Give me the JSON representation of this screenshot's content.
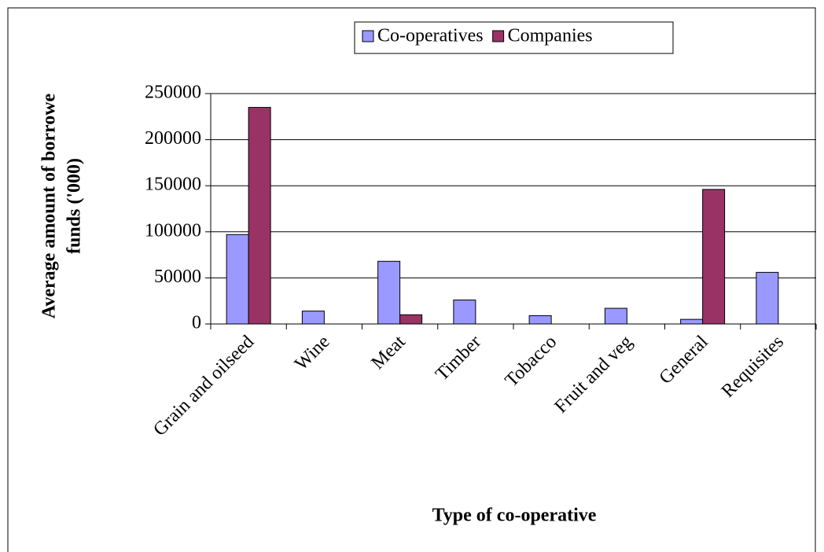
{
  "chart_data": {
    "type": "bar",
    "y_label": "Average amount of borrowe funds ('000)",
    "x_label": "Type of co-operative",
    "categories": [
      "Grain and oilseed",
      "Wine",
      "Meat",
      "Timber",
      "Tobacco",
      "Fruit and veg",
      "General",
      "Requisites"
    ],
    "series": [
      {
        "name": "Co-operatives",
        "color": "#9999ff",
        "values": [
          97000,
          14000,
          68000,
          26000,
          9000,
          17000,
          5000,
          56000
        ]
      },
      {
        "name": "Companies",
        "color": "#993366",
        "values": [
          235000,
          null,
          10000,
          null,
          null,
          null,
          146000,
          null
        ]
      }
    ],
    "ylim": [
      0,
      250000
    ],
    "yticks": [
      0,
      50000,
      100000,
      150000,
      200000,
      250000
    ],
    "grid": true
  }
}
